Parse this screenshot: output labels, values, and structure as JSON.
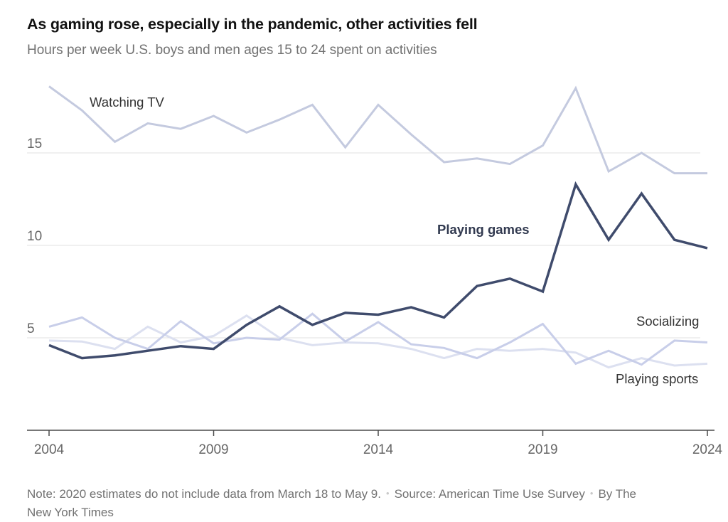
{
  "header": {
    "title": "As gaming rose, especially in the pandemic, other activities fell",
    "subtitle": "Hours per week U.S. boys and men ages 15 to 24 spent on activities"
  },
  "chart_data": {
    "type": "line",
    "x": [
      2004,
      2005,
      2006,
      2007,
      2008,
      2009,
      2010,
      2011,
      2012,
      2013,
      2014,
      2015,
      2016,
      2017,
      2018,
      2019,
      2020,
      2021,
      2022,
      2023,
      2024
    ],
    "x_ticks": [
      2004,
      2009,
      2014,
      2019,
      2024
    ],
    "y_gridlines": [
      5,
      10,
      15
    ],
    "ylim": [
      0,
      19
    ],
    "unit": "hours per week",
    "grid": true,
    "legend_position": "inline-labels",
    "series": [
      {
        "name": "Playing sports",
        "color": "#dce0f0",
        "emphasis": false,
        "values": [
          4.85,
          4.8,
          4.4,
          5.6,
          4.75,
          5.1,
          6.2,
          5.0,
          4.6,
          4.75,
          4.7,
          4.4,
          3.9,
          4.4,
          4.3,
          4.4,
          4.2,
          3.4,
          3.9,
          3.5,
          3.6
        ]
      },
      {
        "name": "Socializing",
        "color": "#c8cee9",
        "emphasis": false,
        "values": [
          5.6,
          6.1,
          5.0,
          4.4,
          5.9,
          4.7,
          5.0,
          4.9,
          6.3,
          4.8,
          5.85,
          4.65,
          4.45,
          3.9,
          4.75,
          5.75,
          3.6,
          4.3,
          3.55,
          4.85,
          4.75
        ]
      },
      {
        "name": "Watching TV",
        "color": "#c4cadf",
        "emphasis": false,
        "values": [
          18.6,
          17.3,
          15.6,
          16.6,
          16.3,
          17.0,
          16.1,
          16.8,
          17.6,
          15.3,
          17.6,
          16.0,
          14.5,
          14.7,
          14.4,
          15.4,
          18.5,
          14.0,
          15.0,
          13.9,
          13.9
        ]
      },
      {
        "name": "Playing games",
        "color": "#3f4b6c",
        "emphasis": true,
        "values": [
          4.6,
          3.9,
          4.05,
          4.3,
          4.55,
          4.4,
          5.7,
          6.7,
          5.7,
          6.35,
          6.25,
          6.65,
          6.1,
          7.8,
          8.2,
          7.5,
          13.3,
          10.3,
          12.8,
          10.3,
          9.85
        ]
      }
    ],
    "title": "As gaming rose, especially in the pandemic, other activities fell",
    "xlabel": "",
    "ylabel": ""
  },
  "labels": {
    "tv": "Watching TV",
    "games": "Playing games",
    "socializing": "Socializing",
    "sports": "Playing sports"
  },
  "footer": {
    "note": "Note: 2020 estimates do not include data from March 18 to May 9.",
    "source": "Source: American Time Use Survey",
    "byline": "By The New York Times",
    "separator": "•"
  }
}
